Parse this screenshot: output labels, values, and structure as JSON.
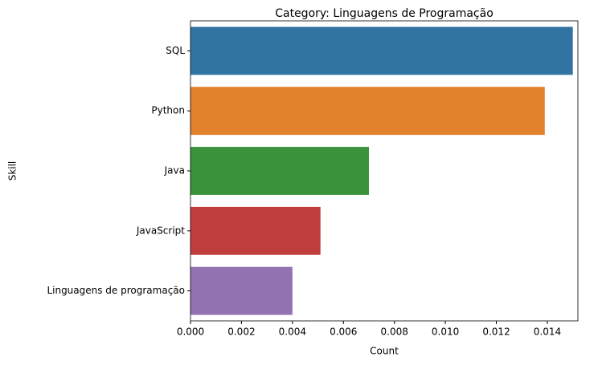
{
  "chart_data": {
    "type": "barh",
    "title": "Category: Linguagens de Programação",
    "xlabel": "Count",
    "ylabel": "Skill",
    "categories": [
      "SQL",
      "Python",
      "Java",
      "JavaScript",
      "Linguagens de programação"
    ],
    "values": [
      0.015,
      0.0139,
      0.007,
      0.0051,
      0.004
    ],
    "colors": [
      "#3274a1",
      "#e1812c",
      "#3a923a",
      "#c03d3e",
      "#9372b2"
    ],
    "xlim": [
      0,
      0.0152
    ],
    "xticks": [
      {
        "value": 0,
        "label": "0.000"
      },
      {
        "value": 0.002,
        "label": "0.002"
      },
      {
        "value": 0.004,
        "label": "0.004"
      },
      {
        "value": 0.006,
        "label": "0.006"
      },
      {
        "value": 0.008,
        "label": "0.008"
      },
      {
        "value": 0.01,
        "label": "0.010"
      },
      {
        "value": 0.012,
        "label": "0.012"
      },
      {
        "value": 0.014,
        "label": "0.014"
      }
    ]
  }
}
